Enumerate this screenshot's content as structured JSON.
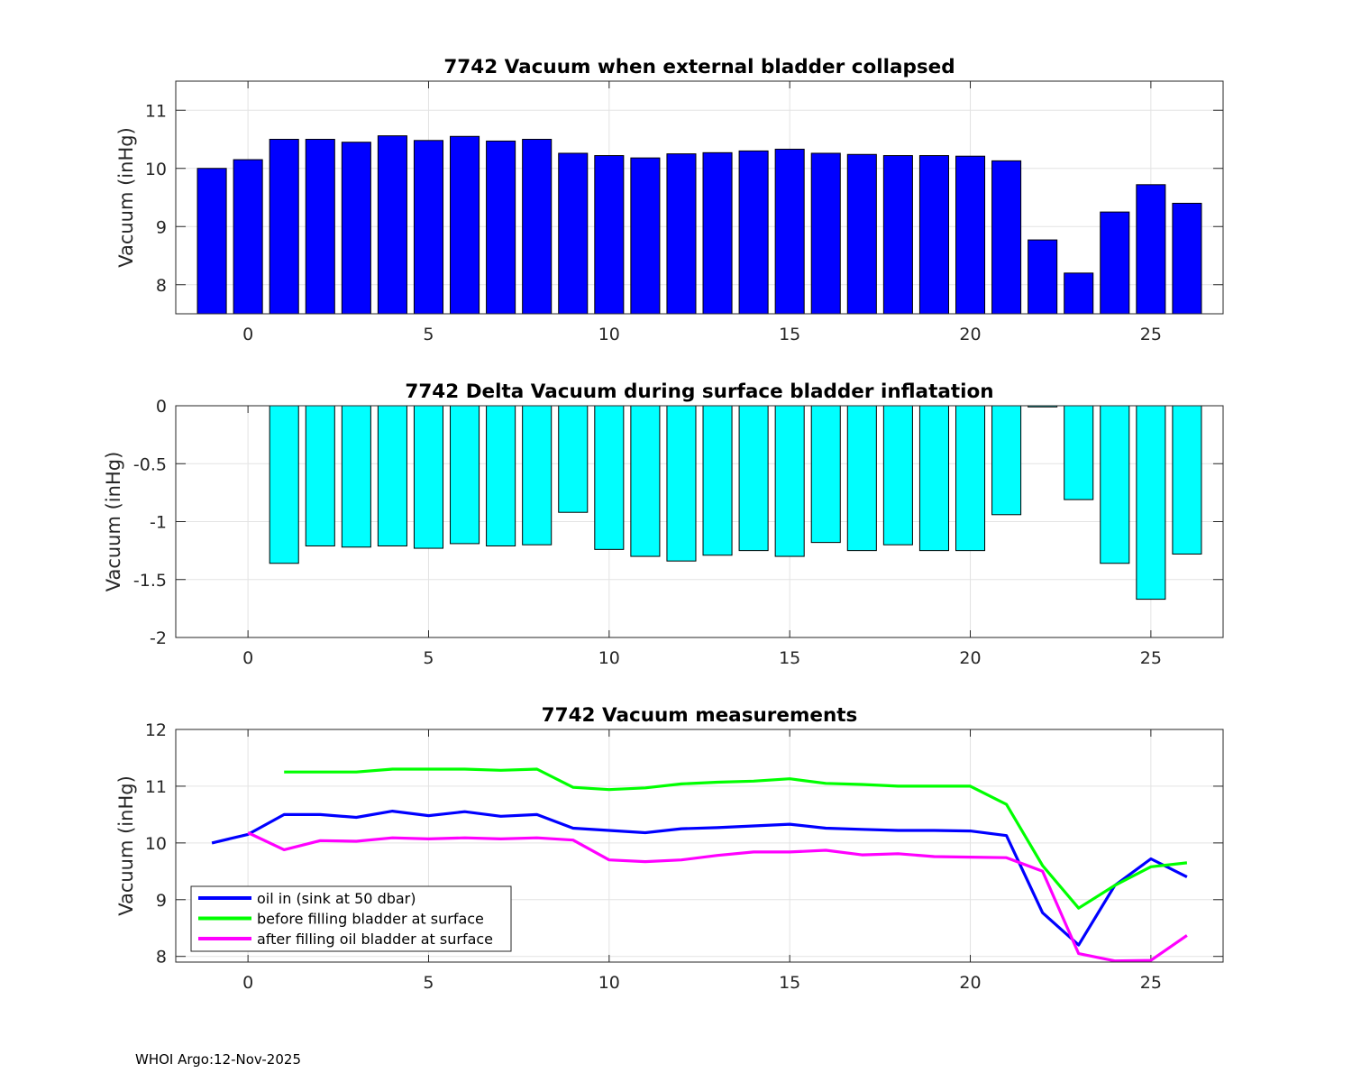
{
  "footer": "WHOI Argo:12-Nov-2025",
  "chart_data": [
    {
      "type": "bar",
      "title": "7742 Vacuum when external bladder collapsed",
      "ylabel": "Vacuum (inHg)",
      "xlabel": "",
      "xlim": [
        -2,
        27
      ],
      "ylim": [
        7.5,
        11.5
      ],
      "xticks": [
        "0",
        "5",
        "10",
        "15",
        "20",
        "25"
      ],
      "yticks": [
        "8",
        "9",
        "10",
        "11"
      ],
      "grid": true,
      "color": "#0000ff",
      "x": [
        -1,
        0,
        1,
        2,
        3,
        4,
        5,
        6,
        7,
        8,
        9,
        10,
        11,
        12,
        13,
        14,
        15,
        16,
        17,
        18,
        19,
        20,
        21,
        22,
        23,
        24,
        25,
        26
      ],
      "values": [
        10.0,
        10.15,
        10.5,
        10.5,
        10.45,
        10.56,
        10.48,
        10.55,
        10.47,
        10.5,
        10.26,
        10.22,
        10.18,
        10.25,
        10.27,
        10.3,
        10.33,
        10.26,
        10.24,
        10.22,
        10.22,
        10.21,
        10.13,
        8.77,
        8.2,
        9.25,
        9.72,
        9.4
      ]
    },
    {
      "type": "bar",
      "title": "7742 Delta Vacuum during surface bladder inflatation",
      "ylabel": "Vacuum (inHg)",
      "xlabel": "",
      "xlim": [
        -2,
        27
      ],
      "ylim": [
        -2,
        0
      ],
      "xticks": [
        "0",
        "5",
        "10",
        "15",
        "20",
        "25"
      ],
      "yticks": [
        "0",
        "-0.5",
        "-1",
        "-1.5",
        "-2"
      ],
      "grid": true,
      "color": "#00ffff",
      "x": [
        1,
        2,
        3,
        4,
        5,
        6,
        7,
        8,
        9,
        10,
        11,
        12,
        13,
        14,
        15,
        16,
        17,
        18,
        19,
        20,
        21,
        22,
        23,
        24,
        25,
        26
      ],
      "values": [
        -1.36,
        -1.21,
        -1.22,
        -1.21,
        -1.23,
        -1.19,
        -1.21,
        -1.2,
        -0.92,
        -1.24,
        -1.3,
        -1.34,
        -1.29,
        -1.25,
        -1.3,
        -1.18,
        -1.25,
        -1.2,
        -1.25,
        -1.25,
        -0.94,
        -0.01,
        -0.81,
        -1.36,
        -1.67,
        -1.28
      ]
    },
    {
      "type": "line",
      "title": "7742 Vacuum measurements",
      "ylabel": "Vacuum (inHg)",
      "xlabel": "",
      "xlim": [
        -2,
        27
      ],
      "ylim": [
        7.9,
        12
      ],
      "xticks": [
        "0",
        "5",
        "10",
        "15",
        "20",
        "25"
      ],
      "yticks": [
        "8",
        "9",
        "10",
        "11",
        "12"
      ],
      "grid": true,
      "legend_position": "bottom-left",
      "series": [
        {
          "name": "oil in (sink at 50 dbar)",
          "color": "#0000ff",
          "x": [
            -1,
            0,
            1,
            2,
            3,
            4,
            5,
            6,
            7,
            8,
            9,
            10,
            11,
            12,
            13,
            14,
            15,
            16,
            17,
            18,
            19,
            20,
            21,
            22,
            23,
            24,
            25,
            26
          ],
          "y": [
            10.0,
            10.15,
            10.5,
            10.5,
            10.45,
            10.56,
            10.48,
            10.55,
            10.47,
            10.5,
            10.26,
            10.22,
            10.18,
            10.25,
            10.27,
            10.3,
            10.33,
            10.26,
            10.24,
            10.22,
            10.22,
            10.21,
            10.13,
            8.77,
            8.2,
            9.25,
            9.72,
            9.4
          ]
        },
        {
          "name": "before filling bladder at surface",
          "color": "#00ff00",
          "x": [
            1,
            2,
            3,
            4,
            5,
            6,
            7,
            8,
            9,
            10,
            11,
            12,
            13,
            14,
            15,
            16,
            17,
            18,
            19,
            20,
            21,
            22,
            23,
            24,
            25,
            26
          ],
          "y": [
            11.25,
            11.25,
            11.25,
            11.3,
            11.3,
            11.3,
            11.28,
            11.3,
            10.98,
            10.94,
            10.97,
            11.04,
            11.07,
            11.09,
            11.13,
            11.05,
            11.03,
            11.0,
            11.0,
            11.0,
            10.68,
            9.6,
            8.85,
            9.25,
            9.58,
            9.65
          ]
        },
        {
          "name": "after filling oil bladder at surface",
          "color": "#ff00ff",
          "x": [
            0,
            1,
            2,
            3,
            4,
            5,
            6,
            7,
            8,
            9,
            10,
            11,
            12,
            13,
            14,
            15,
            16,
            17,
            18,
            19,
            20,
            21,
            22,
            23,
            24,
            25,
            26
          ],
          "y": [
            10.18,
            9.88,
            10.04,
            10.03,
            10.09,
            10.07,
            10.09,
            10.07,
            10.09,
            10.05,
            9.7,
            9.67,
            9.7,
            9.78,
            9.84,
            9.84,
            9.87,
            9.79,
            9.81,
            9.76,
            9.75,
            9.74,
            9.5,
            8.05,
            7.92,
            7.93,
            8.37
          ]
        }
      ]
    }
  ]
}
